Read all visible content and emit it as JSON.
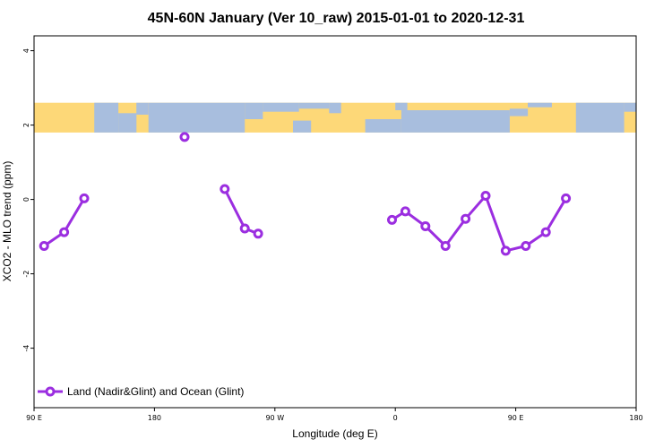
{
  "chart_data": {
    "type": "line",
    "title": "45N-60N January (Ver 10_raw)   2015-01-01 to 2020-12-31",
    "xlabel": "Longitude (deg E)",
    "ylabel": "XCO2 - MLO trend (ppm)",
    "xlim": [
      90,
      450
    ],
    "ylim": [
      -5.6,
      4.4
    ],
    "x_ticks": [
      {
        "value": 90,
        "label": "90 E"
      },
      {
        "value": 180,
        "label": "180"
      },
      {
        "value": 270,
        "label": "90 W"
      },
      {
        "value": 360,
        "label": "0"
      },
      {
        "value": 450,
        "label": "90 E"
      },
      {
        "value": 540,
        "label": "180"
      }
    ],
    "y_ticks": [
      {
        "value": 4,
        "label": "4"
      },
      {
        "value": 2,
        "label": "2"
      },
      {
        "value": 0,
        "label": "0"
      },
      {
        "value": -2,
        "label": "-2"
      },
      {
        "value": -4,
        "label": "-4"
      }
    ],
    "map_band": {
      "y_top": 2.6,
      "y_bottom": 1.8,
      "land_color": "#fdd878",
      "ocean_color": "#a8bede"
    },
    "series": [
      {
        "name": "Land (Nadir&Glint) and Ocean (Glint)",
        "color": "#9b2ee0",
        "segments": [
          [
            {
              "x": 97.5,
              "y": -1.25
            },
            {
              "x": 112.5,
              "y": -0.88
            },
            {
              "x": 127.5,
              "y": 0.03
            }
          ],
          [
            {
              "x": 202.5,
              "y": 1.68
            }
          ],
          [
            {
              "x": 232.5,
              "y": 0.28
            },
            {
              "x": 247.5,
              "y": -0.78
            },
            {
              "x": 257.5,
              "y": -0.92
            }
          ],
          [
            {
              "x": 357.5,
              "y": -0.55
            },
            {
              "x": 367.5,
              "y": -0.32
            },
            {
              "x": 382.5,
              "y": -0.72
            },
            {
              "x": 397.5,
              "y": -1.25
            },
            {
              "x": 412.5,
              "y": -0.52
            },
            {
              "x": 427.5,
              "y": 0.1
            },
            {
              "x": 442.5,
              "y": -1.38
            },
            {
              "x": 457.5,
              "y": -1.25
            },
            {
              "x": 472.5,
              "y": -0.88
            },
            {
              "x": 487.5,
              "y": 0.03
            }
          ]
        ]
      }
    ],
    "legend": {
      "position": "bottom-left"
    },
    "grid": false
  }
}
